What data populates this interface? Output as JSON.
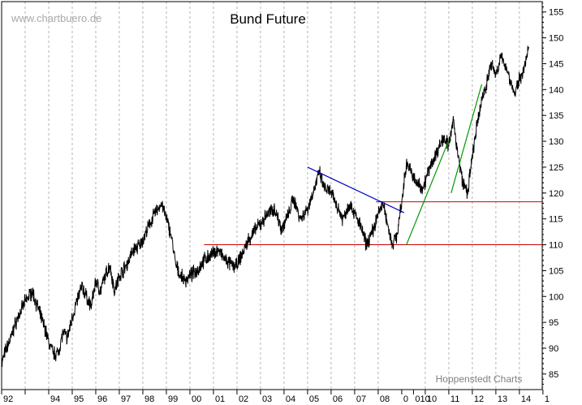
{
  "chart_data": {
    "type": "line",
    "title": "Bund Future",
    "watermark": "www.chartbuero.de",
    "source": "Hoppenstedt Charts",
    "xlabel": "",
    "ylabel": "",
    "grid": "vertical-dashed",
    "y_axis_position": "right",
    "xlim": [
      1992.0,
      2015.0
    ],
    "ylim": [
      82,
      157
    ],
    "y_ticks": [
      85,
      90,
      95,
      100,
      105,
      110,
      115,
      120,
      125,
      130,
      135,
      140,
      145,
      150,
      155
    ],
    "x_ticks": [
      {
        "x": 1992,
        "label": "92"
      },
      {
        "x": 1993,
        "label": ""
      },
      {
        "x": 1994,
        "label": "94"
      },
      {
        "x": 1995,
        "label": "95"
      },
      {
        "x": 1996,
        "label": "96"
      },
      {
        "x": 1997,
        "label": "97"
      },
      {
        "x": 1998,
        "label": "98"
      },
      {
        "x": 1999,
        "label": "99"
      },
      {
        "x": 2000,
        "label": "00"
      },
      {
        "x": 2001,
        "label": "01"
      },
      {
        "x": 2002,
        "label": "02"
      },
      {
        "x": 2003,
        "label": "03"
      },
      {
        "x": 2004,
        "label": "04"
      },
      {
        "x": 2005,
        "label": "05"
      },
      {
        "x": 2006,
        "label": "06"
      },
      {
        "x": 2007,
        "label": "07"
      },
      {
        "x": 2008,
        "label": "08"
      },
      {
        "x": 2009,
        "label": "0"
      },
      {
        "x": 2009.5,
        "label": "010"
      },
      {
        "x": 2010,
        "label": "10"
      },
      {
        "x": 2011,
        "label": "11"
      },
      {
        "x": 2012,
        "label": "12"
      },
      {
        "x": 2013,
        "label": "13"
      },
      {
        "x": 2014,
        "label": "14"
      },
      {
        "x": 2015,
        "label": "1"
      }
    ],
    "series": [
      {
        "name": "",
        "color": "#000000",
        "x": [
          1992.0,
          1992.2,
          1992.4,
          1992.6,
          1992.8,
          1993.0,
          1993.3,
          1993.6,
          1993.9,
          1994.0,
          1994.2,
          1994.4,
          1994.6,
          1994.8,
          1995.0,
          1995.2,
          1995.4,
          1995.6,
          1995.8,
          1996.0,
          1996.2,
          1996.4,
          1996.6,
          1996.8,
          1997.0,
          1997.3,
          1997.6,
          1997.9,
          1998.2,
          1998.5,
          1998.8,
          1999.0,
          1999.2,
          1999.4,
          1999.6,
          1999.8,
          2000.0,
          2000.3,
          2000.6,
          2000.9,
          2001.2,
          2001.5,
          2001.8,
          2002.0,
          2002.2,
          2002.5,
          2002.8,
          2003.0,
          2003.3,
          2003.6,
          2003.9,
          2004.2,
          2004.4,
          2004.7,
          2005.0,
          2005.3,
          2005.5,
          2005.7,
          2006.0,
          2006.3,
          2006.5,
          2006.8,
          2007.0,
          2007.3,
          2007.5,
          2007.8,
          2008.0,
          2008.2,
          2008.4,
          2008.6,
          2008.8,
          2009.0,
          2009.2,
          2009.4,
          2009.6,
          2009.9,
          2010.2,
          2010.5,
          2010.8,
          2011.0,
          2011.2,
          2011.4,
          2011.6,
          2011.8,
          2012.0,
          2012.2,
          2012.4,
          2012.6,
          2012.8,
          2013.0,
          2013.2,
          2013.4,
          2013.6,
          2013.8,
          2014.0,
          2014.2,
          2014.4
        ],
        "values": [
          87,
          90,
          92,
          95,
          97,
          99,
          101,
          97,
          93,
          91,
          89,
          89,
          93,
          92,
          96,
          99,
          102,
          100,
          98,
          103,
          101,
          104,
          106,
          101,
          104,
          106,
          109,
          110,
          113,
          116,
          118,
          115,
          112,
          106,
          104,
          103,
          104,
          105,
          107,
          108,
          109,
          107,
          106,
          106,
          108,
          111,
          113,
          114,
          116,
          117,
          113,
          116,
          119,
          115,
          117,
          121,
          124,
          121,
          120,
          117,
          115,
          118,
          116,
          113,
          110,
          113,
          116,
          118,
          114,
          110,
          112,
          118,
          126,
          124,
          122,
          121,
          125,
          128,
          131,
          129,
          134,
          127,
          122,
          120,
          127,
          133,
          138,
          141,
          145,
          143,
          146,
          145,
          142,
          139,
          142,
          144,
          148
        ]
      }
    ],
    "annotations": [
      {
        "type": "trendline",
        "color": "#0000cc",
        "points": [
          [
            2005.0,
            125.0
          ],
          [
            2009.1,
            116.2
          ]
        ]
      },
      {
        "type": "trendline",
        "color": "#009900",
        "points": [
          [
            2009.2,
            110.0
          ],
          [
            2011.0,
            130.2
          ]
        ]
      },
      {
        "type": "trendline",
        "color": "#009900",
        "points": [
          [
            2011.1,
            120.0
          ],
          [
            2012.4,
            141.0
          ]
        ]
      },
      {
        "type": "hline",
        "color": "#cc0000",
        "y": 110,
        "x_range": [
          2000.6,
          2015.0
        ]
      },
      {
        "type": "hline",
        "color": "#cc0000",
        "y": 118.3,
        "x_range": [
          2007.9,
          2015.0
        ]
      }
    ]
  }
}
